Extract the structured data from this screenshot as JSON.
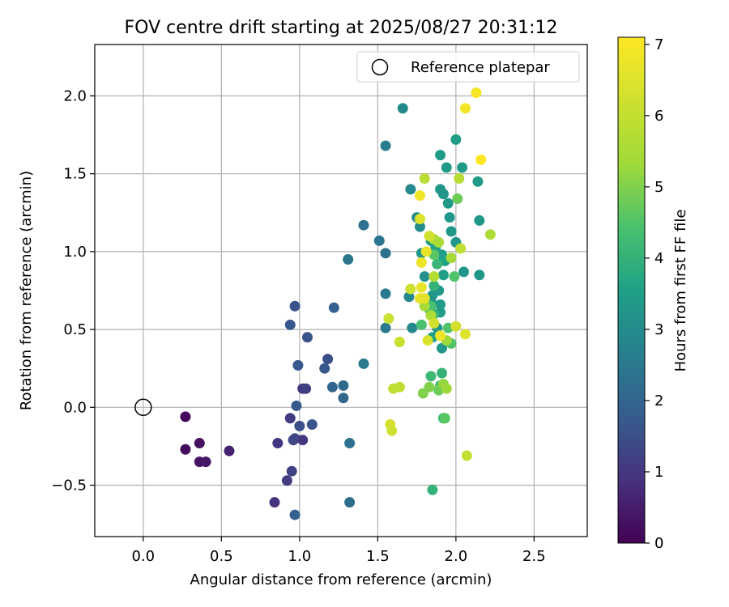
{
  "chart_data": {
    "type": "scatter",
    "title": "FOV centre drift starting at 2025/08/27 20:31:12",
    "xlabel": "Angular distance from reference (arcmin)",
    "ylabel": "Rotation from reference (arcmin)",
    "xlim": [
      -0.31,
      2.84
    ],
    "ylim": [
      -0.83,
      2.33
    ],
    "x_ticks": [
      0.0,
      0.5,
      1.0,
      1.5,
      2.0,
      2.5
    ],
    "x_tick_labels": [
      "0.0",
      "0.5",
      "1.0",
      "1.5",
      "2.0",
      "2.5"
    ],
    "y_ticks": [
      -0.5,
      0.0,
      0.5,
      1.0,
      1.5,
      2.0
    ],
    "y_tick_labels": [
      "−0.5",
      "0.0",
      "0.5",
      "1.0",
      "1.5",
      "2.0"
    ],
    "grid": true,
    "legend": {
      "entries": [
        "Reference platepar"
      ],
      "position": "top-right"
    },
    "reference_point": {
      "x": 0.0,
      "y": 0.0,
      "label": "Reference platepar"
    },
    "colorbar": {
      "label": "Hours from first FF file",
      "min": 0,
      "max": 7.1,
      "ticks": [
        0,
        1,
        2,
        3,
        4,
        5,
        6,
        7
      ],
      "colormap": "viridis"
    },
    "points": [
      {
        "x": 0.27,
        "y": -0.06,
        "h": 0.1
      },
      {
        "x": 0.27,
        "y": -0.27,
        "h": 0.2
      },
      {
        "x": 0.36,
        "y": -0.23,
        "h": 0.3
      },
      {
        "x": 0.36,
        "y": -0.35,
        "h": 0.35
      },
      {
        "x": 0.4,
        "y": -0.35,
        "h": 0.4
      },
      {
        "x": 0.55,
        "y": -0.28,
        "h": 0.6
      },
      {
        "x": 0.84,
        "y": -0.61,
        "h": 0.9
      },
      {
        "x": 0.86,
        "y": -0.23,
        "h": 1.0
      },
      {
        "x": 0.92,
        "y": -0.47,
        "h": 1.1
      },
      {
        "x": 0.94,
        "y": -0.07,
        "h": 1.1
      },
      {
        "x": 0.95,
        "y": -0.41,
        "h": 1.2
      },
      {
        "x": 0.96,
        "y": -0.21,
        "h": 1.3
      },
      {
        "x": 0.97,
        "y": -0.2,
        "h": 1.3
      },
      {
        "x": 0.97,
        "y": -0.69,
        "h": 1.9
      },
      {
        "x": 1.0,
        "y": -0.12,
        "h": 1.5
      },
      {
        "x": 1.02,
        "y": -0.21,
        "h": 1.0
      },
      {
        "x": 1.02,
        "y": 0.12,
        "h": 1.0
      },
      {
        "x": 1.04,
        "y": 0.12,
        "h": 1.2
      },
      {
        "x": 1.08,
        "y": -0.11,
        "h": 1.6
      },
      {
        "x": 0.98,
        "y": 0.01,
        "h": 1.7
      },
      {
        "x": 0.97,
        "y": 0.65,
        "h": 1.6
      },
      {
        "x": 0.94,
        "y": 0.53,
        "h": 1.7
      },
      {
        "x": 1.05,
        "y": 0.45,
        "h": 1.6
      },
      {
        "x": 0.99,
        "y": 0.27,
        "h": 1.7
      },
      {
        "x": 1.16,
        "y": 0.25,
        "h": 1.7
      },
      {
        "x": 1.18,
        "y": 0.31,
        "h": 1.5
      },
      {
        "x": 1.22,
        "y": 0.64,
        "h": 1.9
      },
      {
        "x": 1.21,
        "y": 0.13,
        "h": 2.0
      },
      {
        "x": 1.28,
        "y": 0.14,
        "h": 2.1
      },
      {
        "x": 1.28,
        "y": 0.06,
        "h": 2.1
      },
      {
        "x": 1.32,
        "y": -0.23,
        "h": 2.3
      },
      {
        "x": 1.32,
        "y": -0.61,
        "h": 2.2
      },
      {
        "x": 1.31,
        "y": 0.95,
        "h": 2.4
      },
      {
        "x": 1.41,
        "y": 0.28,
        "h": 2.5
      },
      {
        "x": 1.41,
        "y": 1.17,
        "h": 2.3
      },
      {
        "x": 1.51,
        "y": 1.07,
        "h": 2.4
      },
      {
        "x": 1.55,
        "y": 0.99,
        "h": 2.3
      },
      {
        "x": 1.55,
        "y": 0.73,
        "h": 2.5
      },
      {
        "x": 1.55,
        "y": 0.51,
        "h": 2.5
      },
      {
        "x": 1.55,
        "y": 1.68,
        "h": 2.6
      },
      {
        "x": 1.66,
        "y": 1.92,
        "h": 2.9
      },
      {
        "x": 1.71,
        "y": 1.4,
        "h": 2.9
      },
      {
        "x": 1.7,
        "y": 0.71,
        "h": 2.9
      },
      {
        "x": 1.72,
        "y": 0.51,
        "h": 2.9
      },
      {
        "x": 1.75,
        "y": 1.22,
        "h": 3.0
      },
      {
        "x": 1.77,
        "y": 1.16,
        "h": 3.0
      },
      {
        "x": 1.8,
        "y": 0.84,
        "h": 3.1
      },
      {
        "x": 1.78,
        "y": 0.99,
        "h": 3.3
      },
      {
        "x": 1.84,
        "y": 0.68,
        "h": 3.2
      },
      {
        "x": 1.85,
        "y": 0.45,
        "h": 3.5
      },
      {
        "x": 1.85,
        "y": 0.72,
        "h": 3.3
      },
      {
        "x": 1.88,
        "y": 0.51,
        "h": 3.3
      },
      {
        "x": 1.89,
        "y": 0.75,
        "h": 3.3
      },
      {
        "x": 1.9,
        "y": 0.66,
        "h": 3.4
      },
      {
        "x": 1.9,
        "y": 0.61,
        "h": 3.4
      },
      {
        "x": 1.91,
        "y": 0.38,
        "h": 3.3
      },
      {
        "x": 1.84,
        "y": 1.07,
        "h": 3.5
      },
      {
        "x": 1.87,
        "y": 1.03,
        "h": 3.6
      },
      {
        "x": 1.9,
        "y": 1.4,
        "h": 3.3
      },
      {
        "x": 1.9,
        "y": 1.62,
        "h": 3.4
      },
      {
        "x": 1.92,
        "y": 1.37,
        "h": 3.2
      },
      {
        "x": 1.94,
        "y": 1.54,
        "h": 3.4
      },
      {
        "x": 1.95,
        "y": 1.31,
        "h": 3.3
      },
      {
        "x": 1.96,
        "y": 1.22,
        "h": 3.3
      },
      {
        "x": 1.97,
        "y": 1.13,
        "h": 3.3
      },
      {
        "x": 2.0,
        "y": 1.72,
        "h": 3.4
      },
      {
        "x": 2.0,
        "y": 1.06,
        "h": 3.3
      },
      {
        "x": 2.04,
        "y": 1.54,
        "h": 3.4
      },
      {
        "x": 2.05,
        "y": 0.87,
        "h": 3.3
      },
      {
        "x": 2.14,
        "y": 1.45,
        "h": 3.4
      },
      {
        "x": 2.15,
        "y": 1.2,
        "h": 3.3
      },
      {
        "x": 2.15,
        "y": 0.85,
        "h": 3.3
      },
      {
        "x": 1.91,
        "y": 0.98,
        "h": 3.5
      },
      {
        "x": 1.92,
        "y": 0.85,
        "h": 3.5
      },
      {
        "x": 1.93,
        "y": 0.94,
        "h": 3.6
      },
      {
        "x": 1.88,
        "y": 0.92,
        "h": 4.1
      },
      {
        "x": 1.86,
        "y": 0.78,
        "h": 4.0
      },
      {
        "x": 1.86,
        "y": 0.6,
        "h": 4.0
      },
      {
        "x": 1.83,
        "y": 0.63,
        "h": 4.2
      },
      {
        "x": 1.78,
        "y": 0.53,
        "h": 4.4
      },
      {
        "x": 1.84,
        "y": 0.2,
        "h": 4.2
      },
      {
        "x": 1.85,
        "y": -0.53,
        "h": 4.0
      },
      {
        "x": 1.91,
        "y": 0.22,
        "h": 4.0
      },
      {
        "x": 1.9,
        "y": 0.14,
        "h": 4.2
      },
      {
        "x": 1.92,
        "y": -0.07,
        "h": 4.2
      },
      {
        "x": 1.93,
        "y": -0.07,
        "h": 4.6
      },
      {
        "x": 1.95,
        "y": 0.51,
        "h": 4.5
      },
      {
        "x": 1.97,
        "y": 0.41,
        "h": 4.5
      },
      {
        "x": 1.99,
        "y": 0.84,
        "h": 4.5
      },
      {
        "x": 2.01,
        "y": 1.34,
        "h": 4.8
      },
      {
        "x": 1.86,
        "y": 0.98,
        "h": 4.6
      },
      {
        "x": 1.84,
        "y": 0.65,
        "h": 4.4
      },
      {
        "x": 1.79,
        "y": 0.09,
        "h": 5.0
      },
      {
        "x": 1.83,
        "y": 0.13,
        "h": 5.0
      },
      {
        "x": 1.89,
        "y": 0.11,
        "h": 4.8
      },
      {
        "x": 1.92,
        "y": 0.15,
        "h": 5.2
      },
      {
        "x": 1.94,
        "y": 0.12,
        "h": 5.3
      },
      {
        "x": 1.8,
        "y": 1.47,
        "h": 5.8
      },
      {
        "x": 1.86,
        "y": 1.08,
        "h": 5.6
      },
      {
        "x": 1.89,
        "y": 1.06,
        "h": 5.5
      },
      {
        "x": 1.86,
        "y": 0.84,
        "h": 5.7
      },
      {
        "x": 1.8,
        "y": 0.65,
        "h": 5.4
      },
      {
        "x": 1.84,
        "y": 0.59,
        "h": 5.6
      },
      {
        "x": 1.94,
        "y": 0.43,
        "h": 5.3
      },
      {
        "x": 1.97,
        "y": 0.96,
        "h": 5.4
      },
      {
        "x": 2.02,
        "y": 1.47,
        "h": 5.8
      },
      {
        "x": 2.03,
        "y": 1.02,
        "h": 5.9
      },
      {
        "x": 2.22,
        "y": 1.11,
        "h": 5.6
      },
      {
        "x": 1.64,
        "y": 0.42,
        "h": 6.1
      },
      {
        "x": 1.6,
        "y": 0.12,
        "h": 5.9
      },
      {
        "x": 1.64,
        "y": 0.13,
        "h": 5.9
      },
      {
        "x": 1.57,
        "y": 0.57,
        "h": 6.1
      },
      {
        "x": 1.58,
        "y": -0.11,
        "h": 6.3
      },
      {
        "x": 1.59,
        "y": -0.15,
        "h": 6.2
      },
      {
        "x": 1.71,
        "y": 0.76,
        "h": 6.2
      },
      {
        "x": 1.86,
        "y": 0.54,
        "h": 6.3
      },
      {
        "x": 1.82,
        "y": 0.43,
        "h": 6.4
      },
      {
        "x": 2.07,
        "y": -0.31,
        "h": 6.0
      },
      {
        "x": 1.77,
        "y": 1.21,
        "h": 6.5
      },
      {
        "x": 1.83,
        "y": 1.1,
        "h": 6.3
      },
      {
        "x": 2.0,
        "y": 0.52,
        "h": 6.3
      },
      {
        "x": 1.81,
        "y": 1.0,
        "h": 6.7
      },
      {
        "x": 1.78,
        "y": 0.93,
        "h": 6.8
      },
      {
        "x": 1.78,
        "y": 0.77,
        "h": 6.7
      },
      {
        "x": 1.77,
        "y": 0.7,
        "h": 6.7
      },
      {
        "x": 1.8,
        "y": 0.7,
        "h": 6.6
      },
      {
        "x": 1.9,
        "y": 0.46,
        "h": 6.8
      },
      {
        "x": 2.06,
        "y": 0.47,
        "h": 6.5
      },
      {
        "x": 1.77,
        "y": 1.36,
        "h": 6.9
      },
      {
        "x": 2.06,
        "y": 1.92,
        "h": 6.9
      },
      {
        "x": 2.13,
        "y": 2.02,
        "h": 7.0
      },
      {
        "x": 2.16,
        "y": 1.59,
        "h": 7.1
      }
    ]
  }
}
